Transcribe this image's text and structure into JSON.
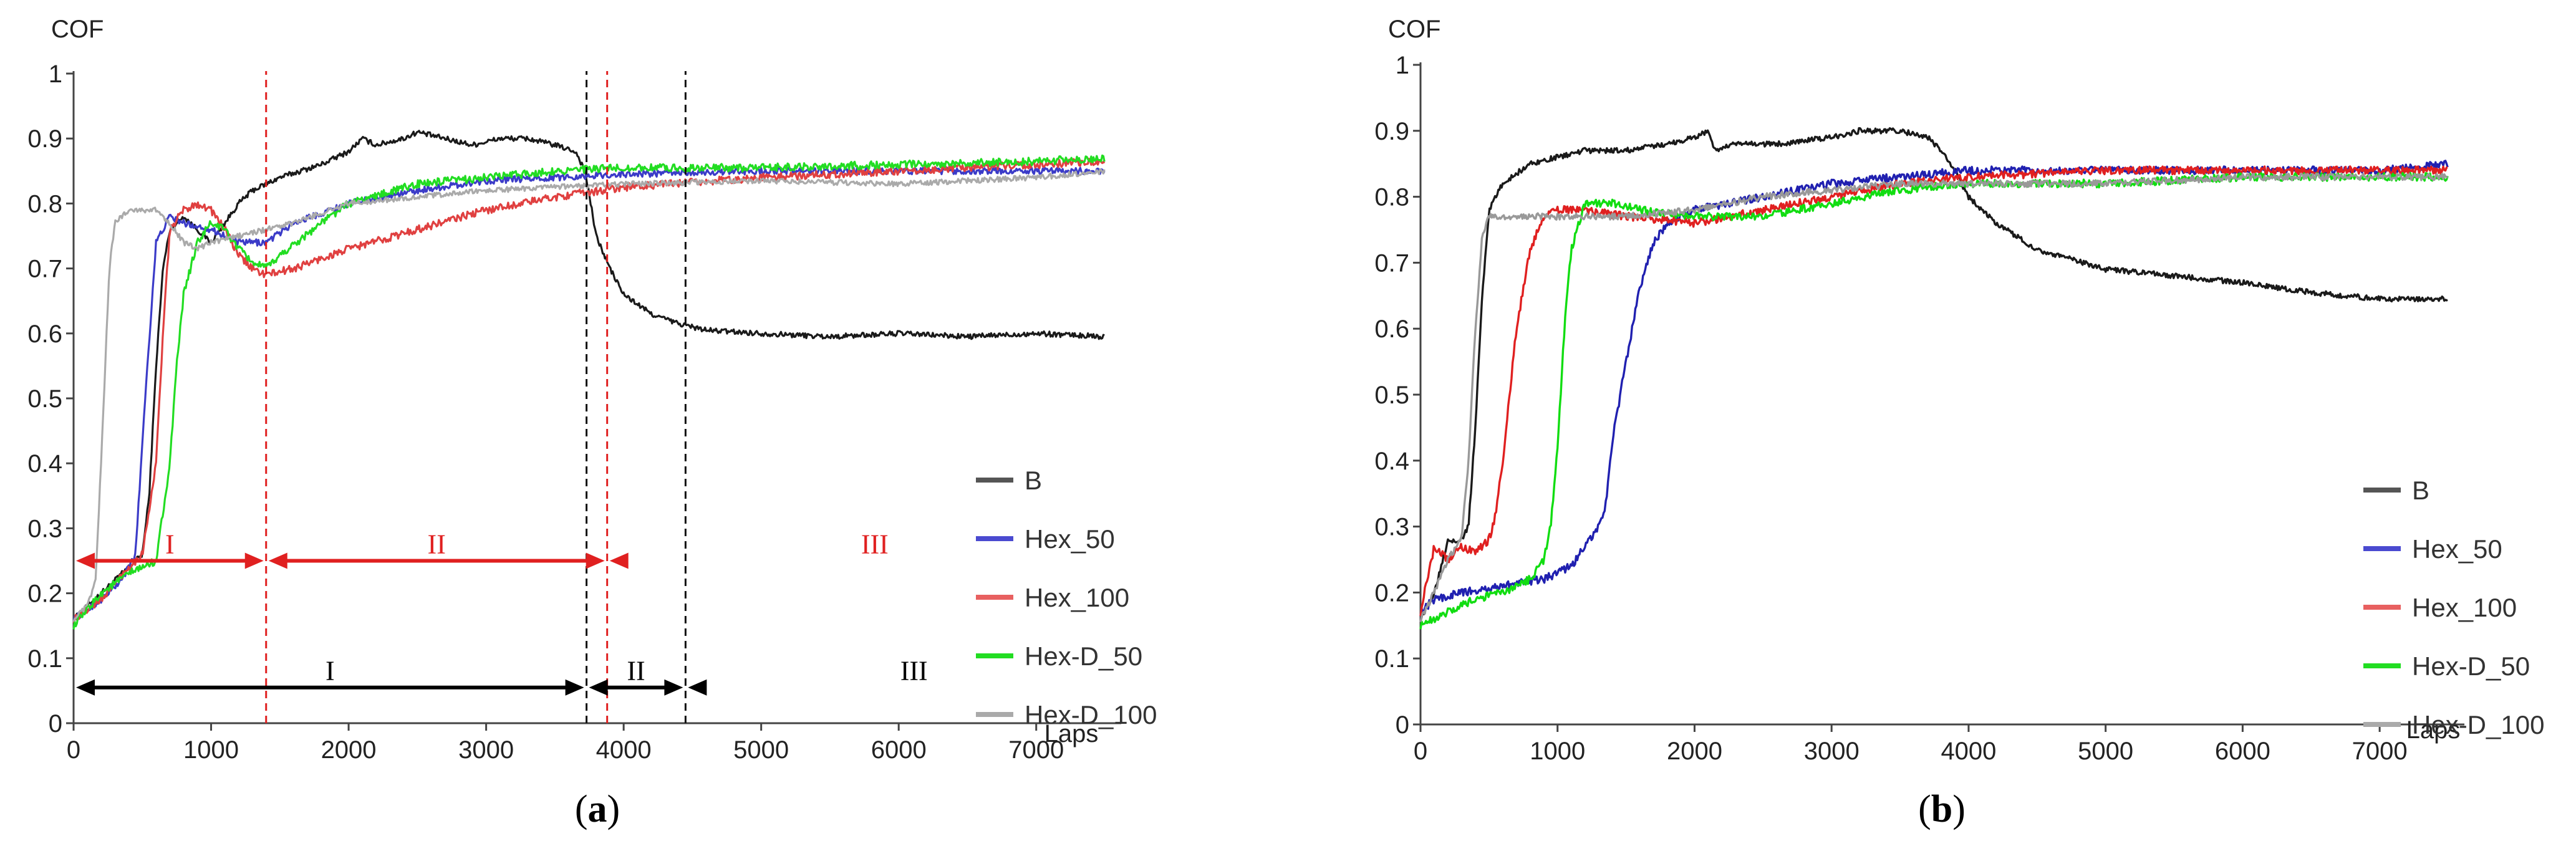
{
  "chart_data": [
    {
      "id": "a",
      "panel_label_prefix": "(",
      "panel_label": "a",
      "panel_label_suffix": ")",
      "type": "line",
      "xlabel": "Laps",
      "ylabel": "COF",
      "xlim": [
        0,
        7500
      ],
      "ylim": [
        0,
        1
      ],
      "xticks": [
        0,
        1000,
        2000,
        3000,
        4000,
        5000,
        6000,
        7000
      ],
      "yticks": [
        0,
        0.1,
        0.2,
        0.3,
        0.4,
        0.5,
        0.6,
        0.7,
        0.8,
        0.9,
        1
      ],
      "ytick_labels": [
        "0",
        "0.1",
        "0.2",
        "0.3",
        "0.4",
        "0.5",
        "0.6",
        "0.7",
        "0.8",
        "0.9",
        "1"
      ],
      "grid": false,
      "legend_position": "bottom-right",
      "series": [
        {
          "name": "B",
          "color": "#1a1a1a",
          "legend_color": "#555555",
          "noise": 0.004,
          "x": [
            0,
            200,
            400,
            500,
            550,
            600,
            650,
            700,
            800,
            900,
            1000,
            1100,
            1200,
            1300,
            1500,
            1800,
            2000,
            2100,
            2200,
            2400,
            2500,
            2700,
            2900,
            3100,
            3300,
            3500,
            3650,
            3720,
            3760,
            3800,
            3900,
            4000,
            4200,
            4400,
            4600,
            5000,
            5500,
            6000,
            6500,
            7000,
            7500
          ],
          "y": [
            0.16,
            0.2,
            0.24,
            0.26,
            0.35,
            0.55,
            0.7,
            0.76,
            0.78,
            0.76,
            0.74,
            0.77,
            0.8,
            0.82,
            0.84,
            0.86,
            0.88,
            0.9,
            0.89,
            0.9,
            0.91,
            0.9,
            0.89,
            0.9,
            0.9,
            0.89,
            0.88,
            0.85,
            0.8,
            0.75,
            0.7,
            0.66,
            0.63,
            0.615,
            0.605,
            0.6,
            0.595,
            0.6,
            0.595,
            0.6,
            0.595
          ]
        },
        {
          "name": "Hex_50",
          "color": "#3b3bc8",
          "legend_color": "#4a4ad0",
          "noise": 0.005,
          "x": [
            0,
            200,
            350,
            450,
            520,
            600,
            700,
            800,
            1000,
            1200,
            1400,
            1600,
            2000,
            2500,
            3000,
            3500,
            4000,
            5000,
            6000,
            7000,
            7500
          ],
          "y": [
            0.16,
            0.19,
            0.22,
            0.26,
            0.5,
            0.74,
            0.78,
            0.77,
            0.76,
            0.74,
            0.74,
            0.77,
            0.8,
            0.82,
            0.835,
            0.84,
            0.845,
            0.85,
            0.85,
            0.85,
            0.85
          ]
        },
        {
          "name": "Hex_100",
          "color": "#e04040",
          "legend_color": "#e86060",
          "noise": 0.006,
          "x": [
            0,
            200,
            400,
            500,
            600,
            650,
            700,
            800,
            900,
            1000,
            1100,
            1200,
            1300,
            1400,
            1600,
            2000,
            2500,
            3000,
            3500,
            4000,
            5000,
            6000,
            7000,
            7500
          ],
          "y": [
            0.16,
            0.19,
            0.24,
            0.26,
            0.4,
            0.6,
            0.76,
            0.79,
            0.8,
            0.79,
            0.76,
            0.72,
            0.7,
            0.69,
            0.7,
            0.73,
            0.76,
            0.79,
            0.81,
            0.825,
            0.84,
            0.85,
            0.86,
            0.865
          ]
        },
        {
          "name": "Hex-D_50",
          "color": "#22dd22",
          "legend_color": "#22dd22",
          "noise": 0.006,
          "x": [
            0,
            200,
            400,
            600,
            700,
            750,
            800,
            900,
            1000,
            1100,
            1200,
            1300,
            1400,
            1500,
            1800,
            2000,
            2500,
            3000,
            3500,
            4000,
            5000,
            6000,
            7000,
            7500
          ],
          "y": [
            0.15,
            0.2,
            0.23,
            0.25,
            0.4,
            0.55,
            0.66,
            0.74,
            0.77,
            0.76,
            0.73,
            0.71,
            0.7,
            0.72,
            0.77,
            0.8,
            0.83,
            0.84,
            0.85,
            0.855,
            0.855,
            0.86,
            0.865,
            0.87
          ]
        },
        {
          "name": "Hex-D_100",
          "color": "#aaaaaa",
          "legend_color": "#aaaaaa",
          "noise": 0.004,
          "x": [
            0,
            100,
            160,
            200,
            260,
            300,
            400,
            500,
            600,
            700,
            800,
            900,
            1000,
            1200,
            1400,
            1600,
            2000,
            3000,
            4000,
            5000,
            6000,
            7000,
            7500
          ],
          "y": [
            0.16,
            0.18,
            0.22,
            0.4,
            0.7,
            0.77,
            0.79,
            0.79,
            0.79,
            0.77,
            0.74,
            0.73,
            0.74,
            0.75,
            0.76,
            0.77,
            0.8,
            0.82,
            0.83,
            0.835,
            0.83,
            0.84,
            0.85
          ]
        }
      ],
      "vlines": [
        {
          "x": 1400,
          "color": "#e02020"
        },
        {
          "x": 3730,
          "color": "#111111"
        },
        {
          "x": 3880,
          "color": "#e02020"
        },
        {
          "x": 4450,
          "color": "#111111"
        }
      ],
      "regions": [
        {
          "label": "I",
          "group": "red",
          "color": "#e02020",
          "x1": 0,
          "x2": 1400,
          "y": 0.25,
          "label_y": 0.275,
          "fade": false
        },
        {
          "label": "II",
          "group": "red",
          "color": "#e02020",
          "x1": 1400,
          "x2": 3880,
          "y": 0.25,
          "label_y": 0.275,
          "fade": false
        },
        {
          "label": "III",
          "group": "red",
          "color": "#e02020",
          "x1": 3880,
          "x2": 7500,
          "y": 0.25,
          "label_y": 0.275,
          "fade": true
        },
        {
          "label": "I",
          "group": "black",
          "color": "#000000",
          "x1": 0,
          "x2": 3730,
          "y": 0.055,
          "label_y": 0.08,
          "fade": false
        },
        {
          "label": "II",
          "group": "black",
          "color": "#000000",
          "x1": 3730,
          "x2": 4450,
          "y": 0.055,
          "label_y": 0.08,
          "fade": false
        },
        {
          "label": "III",
          "group": "black",
          "color": "#000000",
          "x1": 4450,
          "x2": 7500,
          "y": 0.055,
          "label_y": 0.08,
          "fade": true
        }
      ]
    },
    {
      "id": "b",
      "panel_label_prefix": "(",
      "panel_label": "b",
      "panel_label_suffix": ")",
      "type": "line",
      "xlabel": "Laps",
      "ylabel": "COF",
      "xlim": [
        0,
        7500
      ],
      "ylim": [
        0,
        1
      ],
      "xticks": [
        0,
        1000,
        2000,
        3000,
        4000,
        5000,
        6000,
        7000
      ],
      "yticks": [
        0,
        0.1,
        0.2,
        0.3,
        0.4,
        0.5,
        0.6,
        0.7,
        0.8,
        0.9,
        1
      ],
      "ytick_labels": [
        "0",
        "0.1",
        "0.2",
        "0.3",
        "0.4",
        "0.5",
        "0.6",
        "0.7",
        "0.8",
        "0.9",
        "1"
      ],
      "grid": false,
      "legend_position": "bottom-right",
      "series": [
        {
          "name": "B",
          "color": "#1a1a1a",
          "legend_color": "#555555",
          "noise": 0.004,
          "x": [
            0,
            100,
            200,
            300,
            350,
            400,
            450,
            500,
            600,
            800,
            1000,
            1200,
            1500,
            1800,
            2000,
            2100,
            2150,
            2300,
            2600,
            3000,
            3200,
            3500,
            3700,
            3800,
            3900,
            4000,
            4200,
            4500,
            5000,
            5500,
            6000,
            6500,
            7000,
            7500
          ],
          "y": [
            0.16,
            0.2,
            0.28,
            0.28,
            0.3,
            0.45,
            0.65,
            0.78,
            0.82,
            0.85,
            0.86,
            0.87,
            0.87,
            0.88,
            0.89,
            0.9,
            0.87,
            0.88,
            0.88,
            0.89,
            0.9,
            0.9,
            0.89,
            0.87,
            0.84,
            0.8,
            0.76,
            0.72,
            0.69,
            0.68,
            0.67,
            0.655,
            0.645,
            0.645
          ]
        },
        {
          "name": "Hex_50",
          "color": "#2020b0",
          "legend_color": "#4a4ad0",
          "noise": 0.006,
          "x": [
            0,
            100,
            300,
            600,
            900,
            1100,
            1200,
            1300,
            1350,
            1400,
            1500,
            1600,
            1700,
            1800,
            2000,
            2500,
            3000,
            3500,
            4000,
            5000,
            6000,
            7000,
            7500
          ],
          "y": [
            0.17,
            0.19,
            0.2,
            0.21,
            0.22,
            0.24,
            0.27,
            0.3,
            0.33,
            0.43,
            0.55,
            0.66,
            0.73,
            0.76,
            0.78,
            0.8,
            0.82,
            0.83,
            0.84,
            0.84,
            0.84,
            0.84,
            0.85
          ]
        },
        {
          "name": "Hex_100",
          "color": "#e02020",
          "legend_color": "#e86060",
          "noise": 0.006,
          "x": [
            0,
            100,
            200,
            300,
            400,
            500,
            550,
            600,
            700,
            800,
            900,
            1000,
            1200,
            1500,
            2000,
            2500,
            3000,
            3500,
            4000,
            5000,
            6000,
            7000,
            7500
          ],
          "y": [
            0.17,
            0.27,
            0.25,
            0.27,
            0.26,
            0.28,
            0.32,
            0.4,
            0.6,
            0.72,
            0.77,
            0.78,
            0.78,
            0.77,
            0.76,
            0.78,
            0.8,
            0.82,
            0.83,
            0.84,
            0.84,
            0.84,
            0.84
          ]
        },
        {
          "name": "Hex-D_50",
          "color": "#11dd11",
          "legend_color": "#22dd22",
          "noise": 0.006,
          "x": [
            0,
            200,
            400,
            600,
            800,
            900,
            950,
            1000,
            1050,
            1100,
            1200,
            1400,
            1600,
            2000,
            2500,
            3000,
            3500,
            4000,
            5000,
            6000,
            7000,
            7500
          ],
          "y": [
            0.15,
            0.17,
            0.19,
            0.2,
            0.22,
            0.25,
            0.3,
            0.42,
            0.6,
            0.72,
            0.79,
            0.79,
            0.78,
            0.77,
            0.77,
            0.79,
            0.81,
            0.82,
            0.82,
            0.83,
            0.83,
            0.83
          ]
        },
        {
          "name": "Hex-D_100",
          "color": "#999999",
          "legend_color": "#aaaaaa",
          "noise": 0.005,
          "x": [
            0,
            100,
            200,
            300,
            350,
            400,
            450,
            500,
            600,
            800,
            1000,
            1500,
            2000,
            2500,
            3000,
            3500,
            4000,
            5000,
            6000,
            7000,
            7500
          ],
          "y": [
            0.16,
            0.2,
            0.25,
            0.28,
            0.4,
            0.6,
            0.74,
            0.77,
            0.77,
            0.77,
            0.77,
            0.77,
            0.78,
            0.8,
            0.81,
            0.82,
            0.82,
            0.82,
            0.83,
            0.83,
            0.83
          ]
        }
      ]
    }
  ]
}
